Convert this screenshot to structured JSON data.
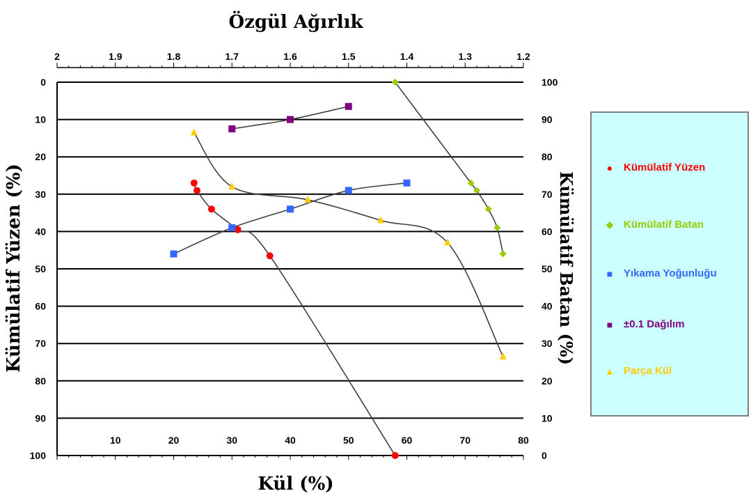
{
  "chart_data": {
    "type": "scatter",
    "title": "Özgül Ağırlık",
    "xlabel": "Kül (%)",
    "ylabel": "Kümülatif Yüzen (%)",
    "y2label": "Kümülatif Batan (%)",
    "x_ticks": [
      "10",
      "20",
      "30",
      "40",
      "50",
      "60",
      "70",
      "80"
    ],
    "x_range": [
      0,
      80
    ],
    "y_ticks": [
      "0",
      "10",
      "20",
      "30",
      "40",
      "50",
      "60",
      "70",
      "80",
      "90",
      "100"
    ],
    "y_range": [
      0,
      100
    ],
    "y2_ticks": [
      "100",
      "90",
      "80",
      "70",
      "60",
      "50",
      "40",
      "30",
      "20",
      "10",
      "0"
    ],
    "y2_range": [
      0,
      100
    ],
    "x2_ticks": [
      "2",
      "1.9",
      "1.8",
      "1.7",
      "1.6",
      "1.5",
      "1.4",
      "1.3",
      "1.2"
    ],
    "x2_range": [
      2.0,
      1.2
    ],
    "grid": "horizontal",
    "legend_position": "right",
    "series": [
      {
        "name": "Kümülatif Yüzen",
        "marker": "circle",
        "color": "#ff0000",
        "axis": "left",
        "points": [
          [
            23.5,
            27
          ],
          [
            24,
            29
          ],
          [
            26.5,
            34
          ],
          [
            31,
            39.5
          ],
          [
            36.5,
            46.5
          ],
          [
            58,
            100
          ]
        ]
      },
      {
        "name": "Kümülatif Batan",
        "marker": "diamond",
        "color": "#99cc00",
        "axis": "right",
        "points": [
          [
            58,
            100
          ],
          [
            71,
            73
          ],
          [
            72,
            71
          ],
          [
            74,
            66
          ],
          [
            75.5,
            61
          ],
          [
            76.5,
            54
          ]
        ]
      },
      {
        "name": "Yıkama Yoğunluğu",
        "marker": "square",
        "color": "#3366ff",
        "axis": "left",
        "points": [
          [
            20,
            46
          ],
          [
            30,
            39
          ],
          [
            40,
            34
          ],
          [
            50,
            29
          ],
          [
            60,
            27
          ]
        ]
      },
      {
        "name": "±0.1 Dağılım",
        "marker": "square",
        "color": "#800080",
        "axis": "left",
        "points": [
          [
            30,
            12.5
          ],
          [
            40,
            10
          ],
          [
            50,
            6.5
          ]
        ]
      },
      {
        "name": "Parça Kül",
        "marker": "triangle",
        "color": "#ffcc00",
        "axis": "left",
        "points": [
          [
            23.5,
            13.5
          ],
          [
            30,
            28
          ],
          [
            43,
            31.5
          ],
          [
            55.5,
            37
          ],
          [
            67,
            43
          ],
          [
            76.5,
            73.5
          ]
        ]
      }
    ]
  },
  "legend": [
    {
      "label": "Kümülatif Yüzen",
      "glyph": "●",
      "color": "#ff0000",
      "text_color": "#ff0000"
    },
    {
      "label": "Kümülatif Batan",
      "glyph": "◆",
      "color": "#99cc00",
      "text_color": "#99cc00"
    },
    {
      "label": "Yıkama Yoğunluğu",
      "glyph": "■",
      "color": "#3366ff",
      "text_color": "#3366ff"
    },
    {
      "label": "±0.1 Dağılım",
      "glyph": "■",
      "color": "#800080",
      "text_color": "#800080"
    },
    {
      "label": "Parça Kül",
      "glyph": "▲",
      "color": "#ffcc00",
      "text_color": "#ffcc00"
    }
  ]
}
